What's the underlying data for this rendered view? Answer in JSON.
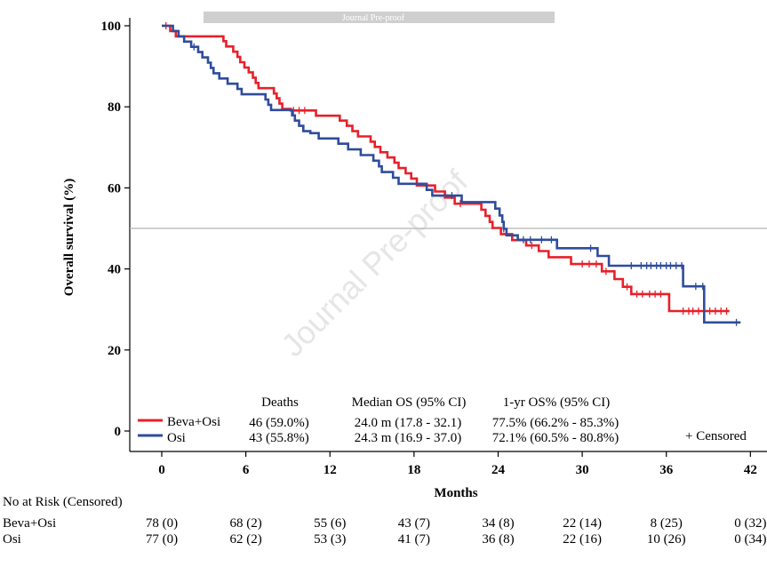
{
  "banner": "Journal Pre-proof",
  "watermark": "Journal Pre-proof",
  "chart_data": {
    "type": "line",
    "chart_kind": "kaplan-meier",
    "xlabel": "Months",
    "ylabel": "Overall survival (%)",
    "xlim": [
      -2,
      43
    ],
    "ylim": [
      -5,
      101
    ],
    "x_ticks": [
      0,
      6,
      12,
      18,
      24,
      30,
      36,
      42
    ],
    "y_ticks": [
      0,
      20,
      40,
      60,
      80,
      100
    ],
    "reference_line_y": 50,
    "colors": {
      "Beva+Osi": "#e8202a",
      "Osi": "#2f4c9c"
    },
    "series": [
      {
        "name": "Beva+Osi",
        "steps": [
          [
            0,
            100
          ],
          [
            0.6,
            98.7
          ],
          [
            1,
            97.4
          ],
          [
            4.4,
            96.2
          ],
          [
            4.6,
            94.9
          ],
          [
            5.1,
            93.6
          ],
          [
            5.4,
            92.3
          ],
          [
            5.6,
            91
          ],
          [
            5.9,
            89.7
          ],
          [
            6.2,
            88.5
          ],
          [
            6.5,
            87.2
          ],
          [
            6.7,
            85.9
          ],
          [
            6.9,
            84.6
          ],
          [
            8,
            83.3
          ],
          [
            8.2,
            82.1
          ],
          [
            8.4,
            80.8
          ],
          [
            8.6,
            79.5
          ],
          [
            9.2,
            79.1
          ],
          [
            11,
            77.8
          ],
          [
            12.7,
            76.6
          ],
          [
            13.2,
            75.3
          ],
          [
            13.6,
            74
          ],
          [
            14,
            72.7
          ],
          [
            14.9,
            71.4
          ],
          [
            15.2,
            70.1
          ],
          [
            15.6,
            68.8
          ],
          [
            16.1,
            67.5
          ],
          [
            16.6,
            66.2
          ],
          [
            16.9,
            64.9
          ],
          [
            17.4,
            63.6
          ],
          [
            17.8,
            62.3
          ],
          [
            18.2,
            60.6
          ],
          [
            19.5,
            59.1
          ],
          [
            20.2,
            57.6
          ],
          [
            20.9,
            56.1
          ],
          [
            22.8,
            54.6
          ],
          [
            23.1,
            53.1
          ],
          [
            23.4,
            51.6
          ],
          [
            23.6,
            50.1
          ],
          [
            24.2,
            48.6
          ],
          [
            25,
            47.1
          ],
          [
            26,
            45.8
          ],
          [
            26.9,
            44.4
          ],
          [
            27.6,
            42.9
          ],
          [
            29.2,
            41.2
          ],
          [
            31.4,
            39.4
          ],
          [
            32.3,
            37.5
          ],
          [
            32.9,
            35.6
          ],
          [
            33.5,
            33.8
          ],
          [
            36.2,
            29.6
          ],
          [
            40.5,
            29.6
          ]
        ],
        "censor_x": [
          0.3,
          9.4,
          9.8,
          10.2,
          21.3,
          26.4,
          30,
          30.5,
          31,
          31.7,
          33.2,
          33.9,
          34.3,
          34.8,
          35.2,
          35.6,
          37.2,
          37.6,
          37.9,
          38.3,
          38.7,
          39.1,
          39.5,
          39.9,
          40.3
        ]
      },
      {
        "name": "Osi",
        "steps": [
          [
            0,
            100
          ],
          [
            0.8,
            98.7
          ],
          [
            1.2,
            97.4
          ],
          [
            1.6,
            96.1
          ],
          [
            2.1,
            94.8
          ],
          [
            2.6,
            93.5
          ],
          [
            2.9,
            92.2
          ],
          [
            3.3,
            90.9
          ],
          [
            3.5,
            89.6
          ],
          [
            3.7,
            88.3
          ],
          [
            4.1,
            87
          ],
          [
            4.7,
            85.7
          ],
          [
            5.4,
            84.4
          ],
          [
            5.7,
            83.1
          ],
          [
            7.4,
            81.8
          ],
          [
            7.6,
            80.5
          ],
          [
            7.8,
            79.2
          ],
          [
            9.3,
            77.9
          ],
          [
            9.5,
            76.6
          ],
          [
            9.8,
            75.3
          ],
          [
            10.1,
            74
          ],
          [
            10.6,
            73.5
          ],
          [
            11.2,
            72.2
          ],
          [
            12.6,
            70.9
          ],
          [
            13.3,
            69.5
          ],
          [
            14.2,
            68.1
          ],
          [
            15.1,
            66.7
          ],
          [
            15.5,
            65.3
          ],
          [
            15.7,
            63.9
          ],
          [
            16.5,
            62.5
          ],
          [
            16.9,
            61
          ],
          [
            18.9,
            59.5
          ],
          [
            19.3,
            58.1
          ],
          [
            21.4,
            56.5
          ],
          [
            23.8,
            54.9
          ],
          [
            24.1,
            53.2
          ],
          [
            24.3,
            51.6
          ],
          [
            24.4,
            49.9
          ],
          [
            24.6,
            48.3
          ],
          [
            25.4,
            47.2
          ],
          [
            28.2,
            45.1
          ],
          [
            31.1,
            43.2
          ],
          [
            31.9,
            40.8
          ],
          [
            37.2,
            35.7
          ],
          [
            38.7,
            26.8
          ],
          [
            41.3,
            26.8
          ]
        ],
        "censor_x": [
          2.3,
          20.7,
          24.4,
          25.8,
          26.3,
          27.1,
          27.8,
          30.6,
          33.5,
          34.2,
          34.6,
          34.9,
          35.3,
          35.6,
          36,
          36.3,
          36.7,
          37.1,
          38.1,
          38.6,
          41
        ]
      }
    ],
    "summary_table": {
      "headers": [
        "Deaths",
        "Median OS (95% CI)",
        "1-yr OS% (95% CI)"
      ],
      "rows": [
        {
          "group": "Beva+Osi",
          "deaths": "46 (59.0%)",
          "median": "24.0 m (17.8 - 32.1)",
          "one_year": "77.5% (66.2% - 85.3%)"
        },
        {
          "group": "Osi",
          "deaths": "43 (55.8%)",
          "median": "24.3 m (16.9 - 37.0)",
          "one_year": "72.1% (60.5% - 80.8%)"
        }
      ]
    },
    "censored_note": "+ Censored",
    "risk_table": {
      "title": "No at Risk (Censored)",
      "times": [
        0,
        6,
        12,
        18,
        24,
        30,
        36,
        42
      ],
      "rows": [
        {
          "group": "Beva+Osi",
          "values": [
            "78 (0)",
            "68 (2)",
            "55 (6)",
            "43 (7)",
            "34 (8)",
            "22 (14)",
            "8 (25)",
            "0 (32)"
          ]
        },
        {
          "group": "Osi",
          "values": [
            "77 (0)",
            "62 (2)",
            "53 (3)",
            "41 (7)",
            "36 (8)",
            "22 (16)",
            "10 (26)",
            "0 (34)"
          ]
        }
      ]
    }
  }
}
